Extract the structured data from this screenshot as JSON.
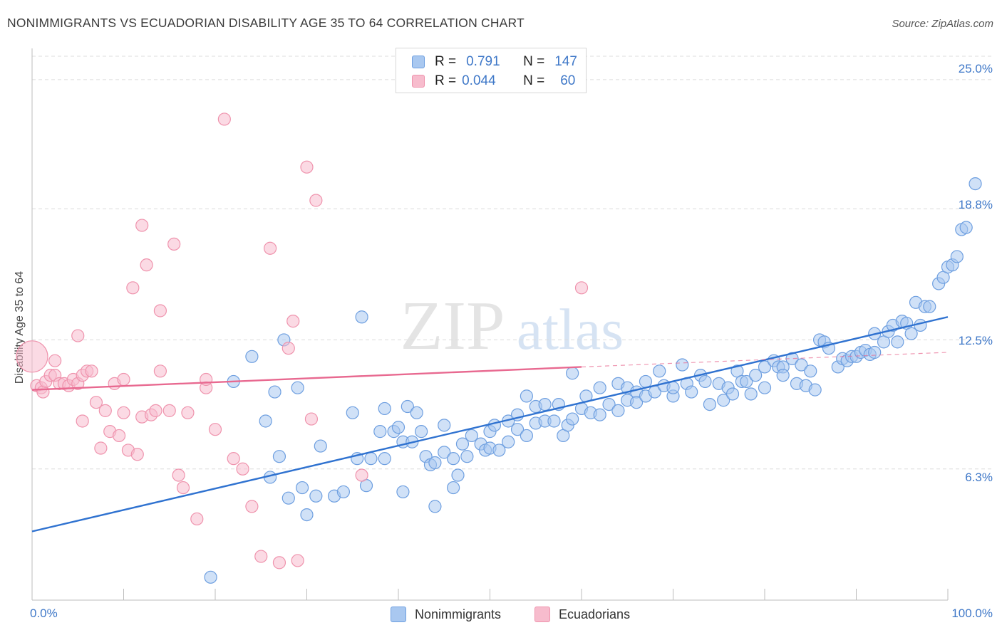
{
  "header": {
    "title": "NONIMMIGRANTS VS ECUADORIAN DISABILITY AGE 35 TO 64 CORRELATION CHART",
    "source": "Source: ZipAtlas.com"
  },
  "watermark": {
    "zip": "ZIP",
    "atlas": "atlas"
  },
  "stats": {
    "rows": [
      {
        "r_label": "R =",
        "r_value": "0.791",
        "n_label": "N =",
        "n_value": "147"
      },
      {
        "r_label": "R =",
        "r_value": "0.044",
        "n_label": "N =",
        "n_value": "60"
      }
    ]
  },
  "legend": {
    "items": [
      "Nonimmigrants",
      "Ecuadorians"
    ]
  },
  "colors": {
    "blue_fill": "#a9c8f0",
    "blue_stroke": "#6e9fe0",
    "blue_line": "#2f72d0",
    "pink_fill": "#f7bccd",
    "pink_stroke": "#ef93ad",
    "pink_line": "#e86990",
    "axis_text": "#3f78c8",
    "grid": "#dcdcdc"
  },
  "chart_data": {
    "type": "scatter",
    "title": "NONIMMIGRANTS VS ECUADORIAN DISABILITY AGE 35 TO 64 CORRELATION CHART",
    "xlabel": "",
    "ylabel": "Disability Age 35 to 64",
    "xlim": [
      0,
      100
    ],
    "ylim": [
      0,
      26.5
    ],
    "x_tick_labels": [
      "0.0%",
      "100.0%"
    ],
    "y_ticks": [
      6.3,
      12.5,
      18.8,
      25.0
    ],
    "y_tick_labels": [
      "6.3%",
      "12.5%",
      "18.8%",
      "25.0%"
    ],
    "grid": true,
    "legend_position": "bottom-center",
    "series": [
      {
        "name": "Nonimmigrants",
        "r": 0.791,
        "n": 147,
        "trend": {
          "x": [
            0,
            100
          ],
          "y": [
            3.3,
            13.6
          ]
        },
        "points": [
          [
            19.5,
            1.1
          ],
          [
            22,
            10.5
          ],
          [
            24,
            11.7
          ],
          [
            25.5,
            8.6
          ],
          [
            26,
            5.9
          ],
          [
            26.5,
            10
          ],
          [
            27,
            6.9
          ],
          [
            27.5,
            12.5
          ],
          [
            28,
            4.9
          ],
          [
            29,
            10.2
          ],
          [
            29.5,
            5.4
          ],
          [
            30,
            4.1
          ],
          [
            31,
            5
          ],
          [
            31.5,
            7.4
          ],
          [
            33,
            5
          ],
          [
            34,
            5.2
          ],
          [
            35,
            9
          ],
          [
            35.5,
            6.8
          ],
          [
            36,
            13.6
          ],
          [
            36.5,
            5.5
          ],
          [
            37,
            6.8
          ],
          [
            38,
            8.1
          ],
          [
            38.5,
            9.2
          ],
          [
            38.5,
            6.8
          ],
          [
            39.5,
            8.1
          ],
          [
            40,
            8.3
          ],
          [
            40.5,
            7.6
          ],
          [
            40.5,
            5.2
          ],
          [
            41,
            9.3
          ],
          [
            41.5,
            7.6
          ],
          [
            42,
            9
          ],
          [
            42.5,
            8.1
          ],
          [
            43,
            6.9
          ],
          [
            43.5,
            6.5
          ],
          [
            44,
            4.5
          ],
          [
            44,
            6.6
          ],
          [
            45,
            8.4
          ],
          [
            45,
            7.1
          ],
          [
            46,
            6.8
          ],
          [
            46,
            5.4
          ],
          [
            46.5,
            6
          ],
          [
            47,
            7.5
          ],
          [
            47.5,
            6.9
          ],
          [
            48,
            7.9
          ],
          [
            49,
            7.5
          ],
          [
            49.5,
            7.2
          ],
          [
            50,
            8.1
          ],
          [
            50,
            7.3
          ],
          [
            50.5,
            8.4
          ],
          [
            51,
            7.2
          ],
          [
            52,
            8.6
          ],
          [
            52,
            7.6
          ],
          [
            53,
            8.9
          ],
          [
            53,
            8.2
          ],
          [
            54,
            9.8
          ],
          [
            54,
            7.9
          ],
          [
            55,
            9.3
          ],
          [
            55,
            8.5
          ],
          [
            56,
            9.4
          ],
          [
            56,
            8.6
          ],
          [
            57,
            8.6
          ],
          [
            57.5,
            9.4
          ],
          [
            58,
            7.9
          ],
          [
            58.5,
            8.4
          ],
          [
            59,
            10.9
          ],
          [
            59,
            8.7
          ],
          [
            60,
            9.2
          ],
          [
            60.5,
            9.8
          ],
          [
            61,
            9
          ],
          [
            62,
            10.2
          ],
          [
            62,
            8.9
          ],
          [
            63,
            9.4
          ],
          [
            64,
            10.4
          ],
          [
            64,
            9.1
          ],
          [
            65,
            10.2
          ],
          [
            65,
            9.6
          ],
          [
            66,
            10
          ],
          [
            66,
            9.5
          ],
          [
            67,
            10.5
          ],
          [
            67,
            9.8
          ],
          [
            68,
            10
          ],
          [
            68.5,
            11
          ],
          [
            69,
            10.3
          ],
          [
            70,
            9.8
          ],
          [
            70,
            10.2
          ],
          [
            71,
            11.3
          ],
          [
            71.5,
            10.4
          ],
          [
            72,
            10
          ],
          [
            73,
            10.8
          ],
          [
            73.5,
            10.5
          ],
          [
            74,
            9.4
          ],
          [
            75,
            10.4
          ],
          [
            75.5,
            9.6
          ],
          [
            76,
            10.2
          ],
          [
            76.5,
            9.9
          ],
          [
            77,
            11
          ],
          [
            77.5,
            10.5
          ],
          [
            78,
            10.5
          ],
          [
            78.5,
            9.9
          ],
          [
            79,
            10.8
          ],
          [
            80,
            10.2
          ],
          [
            80,
            11.2
          ],
          [
            81,
            11.5
          ],
          [
            81.5,
            11.2
          ],
          [
            82,
            11.2
          ],
          [
            82,
            10.8
          ],
          [
            83,
            11.6
          ],
          [
            83.5,
            10.4
          ],
          [
            84,
            11.3
          ],
          [
            84.5,
            10.3
          ],
          [
            85,
            11
          ],
          [
            85.5,
            10.1
          ],
          [
            86,
            12.5
          ],
          [
            86.5,
            12.4
          ],
          [
            87,
            12.1
          ],
          [
            88,
            11.2
          ],
          [
            88.5,
            11.6
          ],
          [
            89,
            11.5
          ],
          [
            89.5,
            11.7
          ],
          [
            90,
            11.7
          ],
          [
            90.5,
            11.9
          ],
          [
            91,
            12
          ],
          [
            91.5,
            11.8
          ],
          [
            92,
            12.8
          ],
          [
            92,
            11.9
          ],
          [
            93,
            12.4
          ],
          [
            93.5,
            12.9
          ],
          [
            94,
            13.2
          ],
          [
            94.5,
            12.4
          ],
          [
            95,
            13.4
          ],
          [
            95.5,
            13.3
          ],
          [
            96,
            12.8
          ],
          [
            96.5,
            14.3
          ],
          [
            97,
            13.2
          ],
          [
            97.5,
            14.1
          ],
          [
            98,
            14.1
          ],
          [
            99,
            15.2
          ],
          [
            99.5,
            15.5
          ],
          [
            100,
            16
          ],
          [
            100.5,
            16.1
          ],
          [
            101,
            16.5
          ],
          [
            101.5,
            17.8
          ],
          [
            102,
            17.9
          ],
          [
            103,
            20
          ]
        ]
      },
      {
        "name": "Ecuadorians",
        "r": 0.044,
        "n": 60,
        "trend": {
          "x": [
            0,
            60
          ],
          "y": [
            10.1,
            11.2
          ]
        },
        "trend_dashed": {
          "x": [
            60,
            100
          ],
          "y": [
            11.2,
            11.9
          ]
        },
        "points": [
          [
            0,
            11.7
          ],
          [
            0.5,
            10.3
          ],
          [
            1,
            10.2
          ],
          [
            1.2,
            10
          ],
          [
            1.5,
            10.5
          ],
          [
            2,
            10.8
          ],
          [
            2.5,
            11.5
          ],
          [
            2.5,
            10.8
          ],
          [
            3,
            10.4
          ],
          [
            3.5,
            10.4
          ],
          [
            4,
            10.3
          ],
          [
            4.5,
            10.6
          ],
          [
            5,
            10.4
          ],
          [
            5,
            12.7
          ],
          [
            5.5,
            8.6
          ],
          [
            5.5,
            10.8
          ],
          [
            6,
            11
          ],
          [
            6.5,
            11
          ],
          [
            7,
            9.5
          ],
          [
            7.5,
            7.3
          ],
          [
            8,
            9.1
          ],
          [
            8.5,
            8.1
          ],
          [
            9,
            10.4
          ],
          [
            9.5,
            7.9
          ],
          [
            10,
            10.6
          ],
          [
            10,
            9
          ],
          [
            10.5,
            7.2
          ],
          [
            11,
            15
          ],
          [
            11.5,
            7
          ],
          [
            12,
            8.8
          ],
          [
            12,
            18
          ],
          [
            12.5,
            16.1
          ],
          [
            13,
            8.9
          ],
          [
            13.5,
            9.1
          ],
          [
            14,
            11
          ],
          [
            14,
            13.9
          ],
          [
            15,
            9.1
          ],
          [
            15.5,
            17.1
          ],
          [
            16,
            6
          ],
          [
            16.5,
            5.4
          ],
          [
            17,
            9
          ],
          [
            18,
            3.9
          ],
          [
            19,
            10.2
          ],
          [
            19,
            10.6
          ],
          [
            20,
            8.2
          ],
          [
            21,
            23.1
          ],
          [
            22,
            6.8
          ],
          [
            23,
            6.3
          ],
          [
            24,
            4.5
          ],
          [
            25,
            2.1
          ],
          [
            26,
            16.9
          ],
          [
            27,
            1.8
          ],
          [
            28,
            12.1
          ],
          [
            28.5,
            13.4
          ],
          [
            29,
            1.9
          ],
          [
            30,
            20.8
          ],
          [
            30.5,
            8.7
          ],
          [
            31,
            19.2
          ],
          [
            36,
            6
          ],
          [
            60,
            15
          ]
        ]
      }
    ]
  }
}
